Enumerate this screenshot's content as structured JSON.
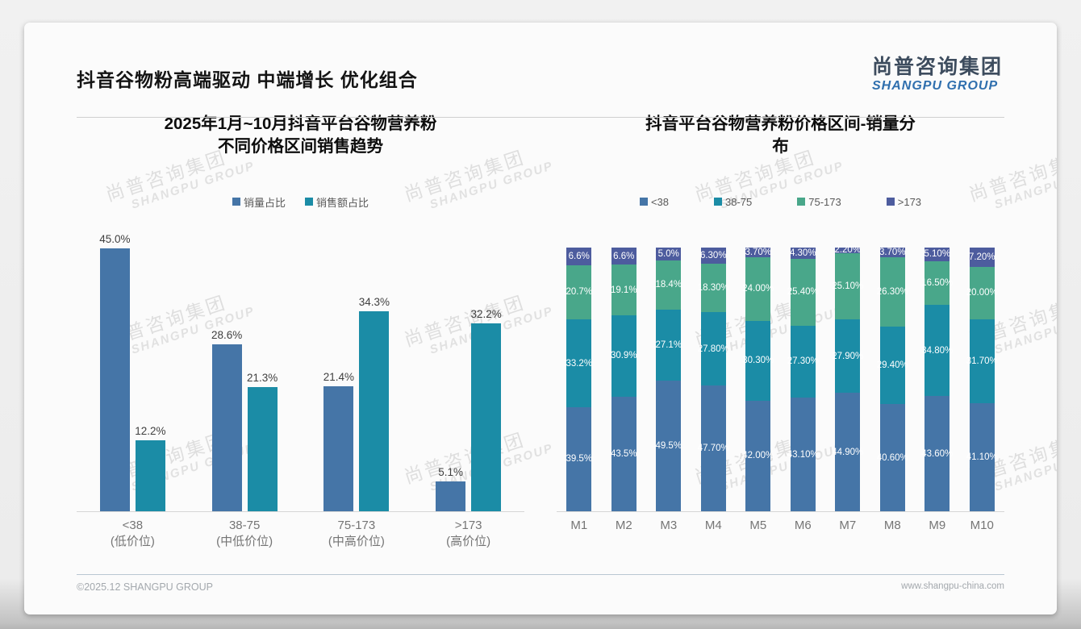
{
  "header": {
    "title": "抖音谷物粉高端驱动 中端增长 优化组合",
    "logo_cn": "尚普咨询集团",
    "logo_en": "SHANGPU GROUP"
  },
  "watermark": {
    "line1": "尚普咨询集团",
    "line2": "SHANGPU GROUP"
  },
  "footer": {
    "left": "©2025.12 SHANGPU GROUP",
    "right": "www.shangpu-china.com"
  },
  "colors": {
    "series_blue": "#4575a7",
    "series_teal": "#1b8ca6",
    "series_green": "#49a78a",
    "series_navy": "#4d5c9e"
  },
  "chart_data": [
    {
      "type": "bar",
      "stacked": false,
      "title": "2025年1月~10月抖音平台谷物营养粉不同价格区间销售趋势",
      "title_lines": [
        "2025年1月~10月抖音平台谷物营养粉",
        "不同价格区间销售趋势"
      ],
      "legend_position": "top",
      "grid": false,
      "ylim": [
        0,
        45
      ],
      "categories": [
        "<38",
        "38-75",
        "75-173",
        ">173"
      ],
      "category_sublabels": [
        "(低价位)",
        "(中低价位)",
        "(中高价位)",
        "(高价位)"
      ],
      "series": [
        {
          "name": "销量占比",
          "color_key": "series_blue",
          "values": [
            45.0,
            28.6,
            21.4,
            5.1
          ],
          "labels": [
            "45.0%",
            "28.6%",
            "21.4%",
            "5.1%"
          ]
        },
        {
          "name": "销售额占比",
          "color_key": "series_teal",
          "values": [
            12.2,
            21.3,
            34.3,
            32.2
          ],
          "labels": [
            "12.2%",
            "21.3%",
            "34.3%",
            "32.2%"
          ]
        }
      ]
    },
    {
      "type": "bar",
      "stacked": true,
      "stacked_100_percent": true,
      "title": "抖音平台谷物营养粉价格区间-销量分布",
      "title_lines": [
        "抖音平台谷物营养粉价格区间-销量分",
        "布"
      ],
      "legend_position": "top",
      "grid": false,
      "ylim": [
        0,
        100
      ],
      "categories": [
        "M1",
        "M2",
        "M3",
        "M4",
        "M5",
        "M6",
        "M7",
        "M8",
        "M9",
        "M10"
      ],
      "series": [
        {
          "name": "<38",
          "color_key": "series_blue",
          "values": [
            39.5,
            43.5,
            49.5,
            47.7,
            42.0,
            43.1,
            44.9,
            40.6,
            43.6,
            41.1
          ],
          "labels": [
            "39.5%",
            "43.5%",
            "49.5%",
            "47.70%",
            "42.00%",
            "43.10%",
            "44.90%",
            "40.60%",
            "43.60%",
            "41.10%"
          ]
        },
        {
          "name": "38-75",
          "color_key": "series_teal",
          "values": [
            33.2,
            30.9,
            27.1,
            27.8,
            30.3,
            27.3,
            27.9,
            29.4,
            34.8,
            31.7
          ],
          "labels": [
            "33.2%",
            "30.9%",
            "27.1%",
            "27.80%",
            "30.30%",
            "27.30%",
            "27.90%",
            "29.40%",
            "34.80%",
            "31.70%"
          ]
        },
        {
          "name": "75-173",
          "color_key": "series_green",
          "values": [
            20.7,
            19.1,
            18.4,
            18.3,
            24.0,
            25.4,
            25.1,
            26.3,
            16.5,
            20.0
          ],
          "labels": [
            "20.7%",
            "19.1%",
            "18.4%",
            "18.30%",
            "24.00%",
            "25.40%",
            "25.10%",
            "26.30%",
            "16.50%",
            "20.00%"
          ]
        },
        {
          "name": ">173",
          "color_key": "series_navy",
          "values": [
            6.6,
            6.6,
            5.0,
            6.3,
            3.7,
            4.3,
            2.2,
            3.7,
            5.1,
            7.2
          ],
          "labels": [
            "6.6%",
            "6.6%",
            "5.0%",
            "6.30%",
            "3.70%",
            "4.30%",
            "2.20%",
            "3.70%",
            "5.10%",
            "7.20%"
          ]
        }
      ]
    }
  ]
}
